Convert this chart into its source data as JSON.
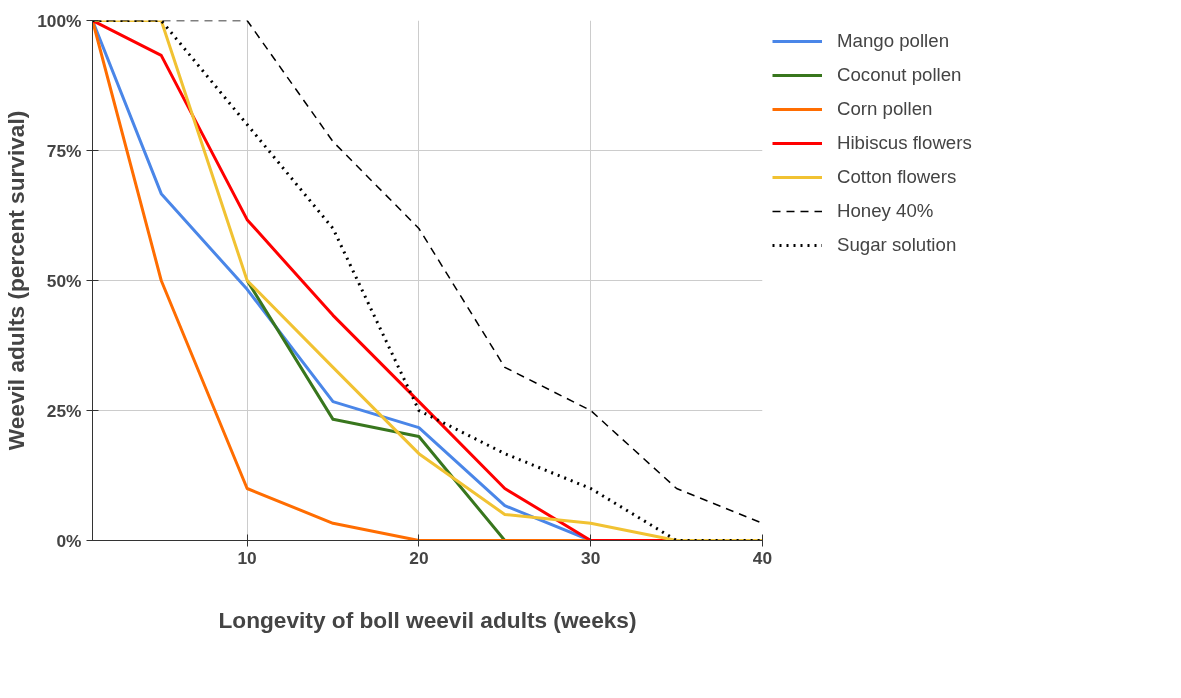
{
  "chart_data": {
    "type": "line",
    "xlabel": "Longevity of boll weevil adults (weeks)",
    "ylabel": "Weevil adults (percent survival)",
    "x": [
      1,
      5,
      10,
      15,
      20,
      25,
      30,
      35,
      40
    ],
    "xlim": [
      1,
      40
    ],
    "xticks": [
      10,
      20,
      30,
      40
    ],
    "ylim": [
      0,
      100
    ],
    "yticks": [
      {
        "value": 0,
        "label": "0%"
      },
      {
        "value": 25,
        "label": "25%"
      },
      {
        "value": 50,
        "label": "50%"
      },
      {
        "value": 75,
        "label": "75%"
      },
      {
        "value": 100,
        "label": "100%"
      }
    ],
    "grid": true,
    "legend": "top right",
    "marker": "none",
    "series": [
      {
        "name": "Mango pollen",
        "color": "#4a86e8",
        "line_style": "solid",
        "values": [
          100,
          66.7,
          48.3,
          26.7,
          21.7,
          6.7,
          0,
          0,
          0
        ]
      },
      {
        "name": "Coconut pollen",
        "color": "#38761d",
        "line_style": "solid",
        "values": [
          null,
          null,
          50,
          23.3,
          20,
          0,
          null,
          null,
          null
        ]
      },
      {
        "name": "Corn pollen",
        "color": "#ff6d01",
        "line_style": "solid",
        "values": [
          100,
          50,
          10,
          3.3,
          0,
          0,
          0,
          0,
          0
        ]
      },
      {
        "name": "Hibiscus flowers",
        "color": "#ff0000",
        "line_style": "solid",
        "values": [
          100,
          93.3,
          61.7,
          43.3,
          26.7,
          10,
          0,
          0,
          0
        ]
      },
      {
        "name": "Cotton flowers",
        "color": "#f1c232",
        "line_style": "solid",
        "values": [
          100,
          100,
          50,
          33.3,
          16.7,
          5,
          3.3,
          0,
          0
        ]
      },
      {
        "name": "Honey 40%",
        "color": "#000000",
        "line_style": "dashed",
        "values": [
          100,
          100,
          100,
          76.7,
          60,
          33.3,
          25,
          10,
          3.3
        ]
      },
      {
        "name": "Sugar solution",
        "color": "#000000",
        "line_style": "dotted",
        "values": [
          100,
          100,
          80,
          60,
          25,
          16.7,
          10,
          0,
          0
        ]
      }
    ]
  }
}
